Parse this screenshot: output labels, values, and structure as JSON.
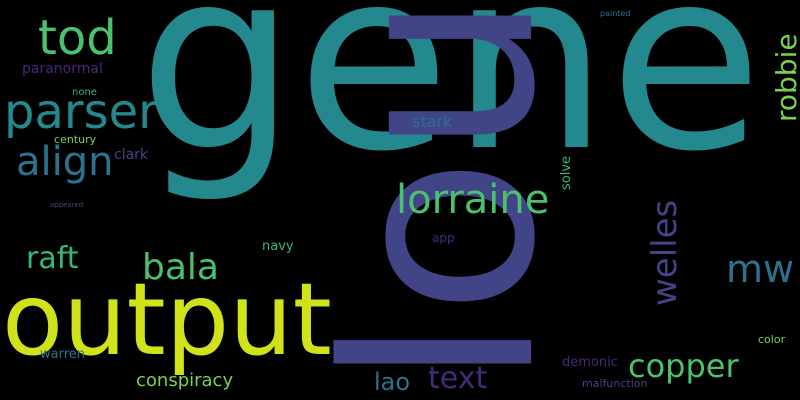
{
  "words": {
    "gene": "gene",
    "lou": "lou",
    "output": "output",
    "parser": "parser",
    "tod": "tod",
    "lorraine": "lorraine",
    "align": "align",
    "welles": "welles",
    "bala": "bala",
    "mw": "mw",
    "raft": "raft",
    "robbie": "robbie",
    "copper": "copper",
    "text": "text",
    "conspiracy": "conspiracy",
    "lao": "lao",
    "paranormal": "paranormal",
    "stark": "stark",
    "clark": "clark",
    "century": "century",
    "none": "none",
    "navy": "navy",
    "warren": "warren",
    "demonic": "demonic",
    "app": "app",
    "solve": "solve",
    "color": "color",
    "malfunction": "malfunction",
    "painted": "painted",
    "appeared": "appeared"
  },
  "colors": {
    "background": "#000000",
    "teal": "#23898e",
    "indigo": "#414487",
    "lime": "#d1e21b",
    "green": "#4ac16d",
    "blue": "#2c728e",
    "purple": "#482878",
    "seagreen": "#35b779",
    "lightgreen": "#7ad151"
  }
}
